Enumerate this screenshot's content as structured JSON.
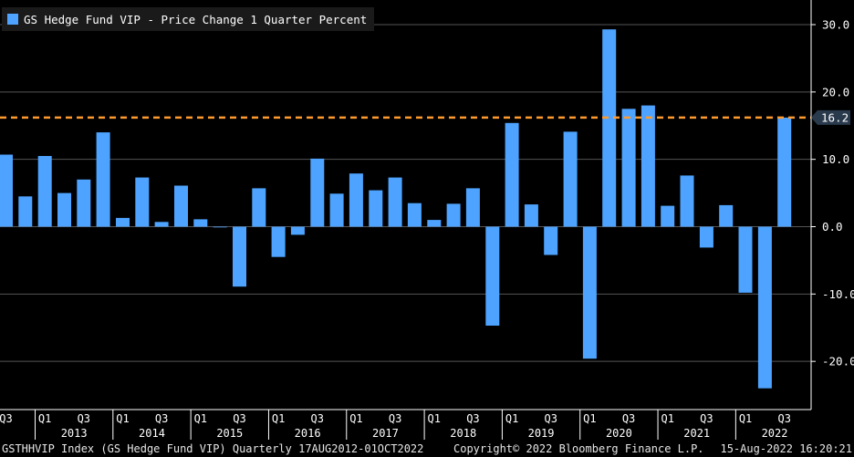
{
  "chart_data": {
    "type": "bar",
    "legend_label": "GS Hedge Fund VIP - Price Change 1 Quarter Percent",
    "bar_color": "#4da3ff",
    "reference_color": "#ff9a2e",
    "background": "#000000",
    "grid": true,
    "legend_position": "top-left",
    "y_axis_side": "right",
    "ylim": [
      -26,
      32
    ],
    "yticks": [
      30,
      20,
      10,
      0,
      -10,
      -20
    ],
    "ytick_labels": [
      "30.0",
      "20.0",
      "10.0",
      "0.0",
      "-10.0",
      "-20.0"
    ],
    "reference_line": {
      "value": 16.2,
      "label": "16.2"
    },
    "categories": [
      "2012 Q3",
      "2012 Q4",
      "2013 Q1",
      "2013 Q2",
      "2013 Q3",
      "2013 Q4",
      "2014 Q1",
      "2014 Q2",
      "2014 Q3",
      "2014 Q4",
      "2015 Q1",
      "2015 Q2",
      "2015 Q3",
      "2015 Q4",
      "2016 Q1",
      "2016 Q2",
      "2016 Q3",
      "2016 Q4",
      "2017 Q1",
      "2017 Q2",
      "2017 Q3",
      "2017 Q4",
      "2018 Q1",
      "2018 Q2",
      "2018 Q3",
      "2018 Q4",
      "2019 Q1",
      "2019 Q2",
      "2019 Q3",
      "2019 Q4",
      "2020 Q1",
      "2020 Q2",
      "2020 Q3",
      "2020 Q4",
      "2021 Q1",
      "2021 Q2",
      "2021 Q3",
      "2021 Q4",
      "2022 Q1",
      "2022 Q2",
      "2022 Q3"
    ],
    "values": [
      10.7,
      4.5,
      10.5,
      5.0,
      7.0,
      14.0,
      1.3,
      7.3,
      0.7,
      6.1,
      1.1,
      0.0,
      -8.9,
      5.7,
      -4.5,
      -1.2,
      10.1,
      4.9,
      7.9,
      5.4,
      7.3,
      3.5,
      1.0,
      3.4,
      5.7,
      -14.7,
      15.4,
      3.3,
      -4.2,
      14.1,
      -19.6,
      29.3,
      17.5,
      18.0,
      3.1,
      7.6,
      -3.1,
      3.2,
      -9.8,
      -24.0,
      16.2
    ],
    "x_quarter_labels": [
      "Q3",
      "Q1",
      "Q3",
      "Q1",
      "Q3",
      "Q1",
      "Q3",
      "Q1",
      "Q3",
      "Q1",
      "Q3",
      "Q1",
      "Q3",
      "Q1",
      "Q3",
      "Q1",
      "Q3",
      "Q1",
      "Q3",
      "Q1",
      "Q3"
    ],
    "x_year_labels": [
      "2013",
      "2014",
      "2015",
      "2016",
      "2017",
      "2018",
      "2019",
      "2020",
      "2021",
      "2022"
    ]
  },
  "footer": {
    "left": "GSTHHVIP Index (GS Hedge Fund VIP)  Quarterly 17AUG2012-01OCT2022",
    "center": "Copyright© 2022 Bloomberg Finance L.P.",
    "right": "15-Aug-2022 16:20:21"
  }
}
